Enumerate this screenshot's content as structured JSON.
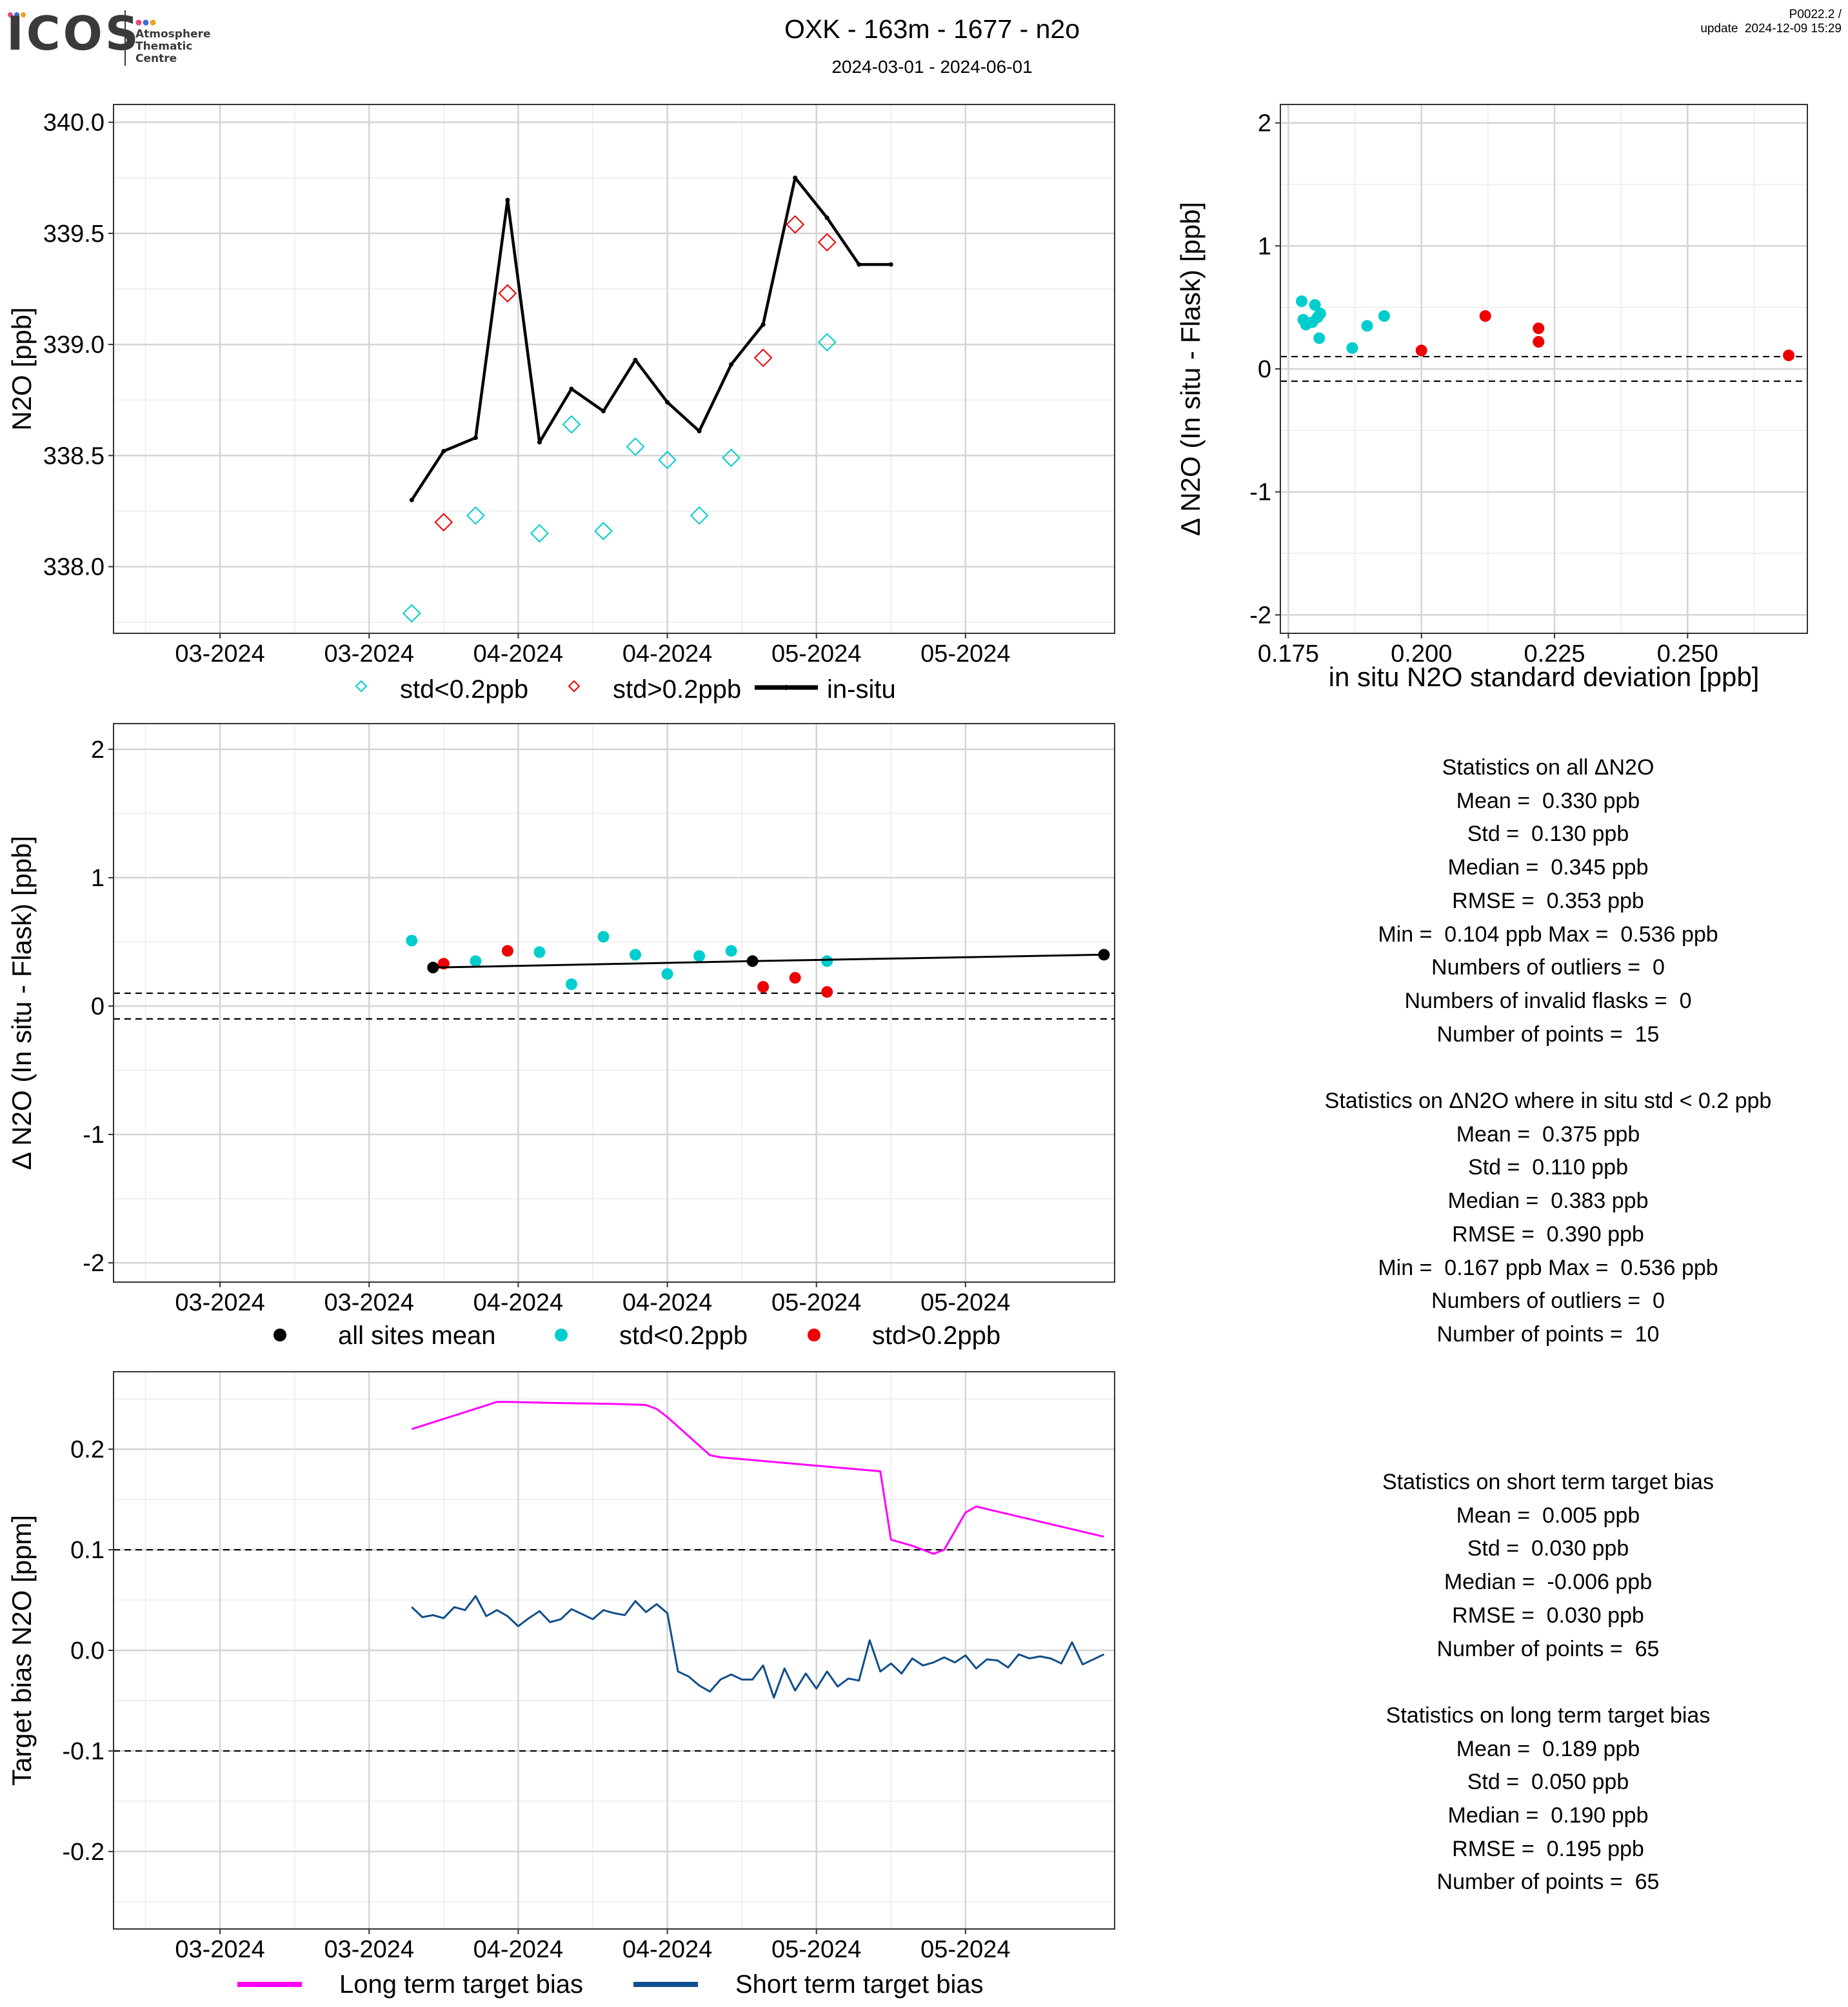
{
  "header": {
    "logo_text": "ICOS",
    "logo_sub": [
      "Atmosphere",
      "Thematic",
      "Centre"
    ],
    "title": "OXK - 163m - 1677 - n2o",
    "subtitle": "2024-03-01 - 2024-06-01",
    "version": "P0022.2 /",
    "update": "update  2024-12-09 15:29",
    "dot_colors": [
      "#e8487a",
      "#3a6fd8",
      "#f0a020"
    ]
  },
  "colors": {
    "cyan": "#00CDCD",
    "red": "#EE0000",
    "black": "#000000",
    "magenta": "#FF00FF",
    "navy": "#104E8B",
    "grid_major": "#d4d4d4",
    "grid_minor": "#ececec"
  },
  "chart_data": [
    {
      "id": "timeseries",
      "type": "line",
      "title": "",
      "xlabel": "",
      "ylabel": "N2O [ppb]",
      "x_tick_labels": [
        "03-2024",
        "03-2024",
        "04-2024",
        "04-2024",
        "05-2024",
        "05-2024"
      ],
      "x_tick_dates": [
        "2024-02-26",
        "2024-03-11",
        "2024-03-25",
        "2024-04-08",
        "2024-04-22",
        "2024-05-06"
      ],
      "x_range": [
        "2024-02-16",
        "2024-05-20"
      ],
      "ylim": [
        337.7,
        340.08
      ],
      "yticks": [
        338.0,
        338.5,
        339.0,
        339.5,
        340.0
      ],
      "ytick_labels": [
        "338.0",
        "338.5",
        "339.0",
        "339.5",
        "340.0"
      ],
      "legend": {
        "position": "bottom",
        "entries": [
          "std<0.2ppb",
          "std>0.2ppb",
          "in-situ"
        ]
      },
      "series": [
        {
          "name": "in-situ",
          "style": "line",
          "color": "black",
          "x": [
            "2024-03-15",
            "2024-03-18",
            "2024-03-21",
            "2024-03-24",
            "2024-03-27",
            "2024-03-30",
            "2024-04-02",
            "2024-04-05",
            "2024-04-08",
            "2024-04-11",
            "2024-04-14",
            "2024-04-17",
            "2024-04-20",
            "2024-04-23",
            "2024-04-26",
            "2024-04-29"
          ],
          "y": [
            338.3,
            338.52,
            338.58,
            339.65,
            338.56,
            338.8,
            338.7,
            338.93,
            338.74,
            338.61,
            338.91,
            339.09,
            339.75,
            339.57,
            339.36,
            339.36
          ]
        },
        {
          "name": "std<0.2ppb",
          "style": "diamond",
          "color": "cyan",
          "x": [
            "2024-03-15",
            "2024-03-21",
            "2024-03-27",
            "2024-03-30",
            "2024-04-02",
            "2024-04-05",
            "2024-04-08",
            "2024-04-11",
            "2024-04-14",
            "2024-04-23"
          ],
          "y": [
            337.79,
            338.23,
            338.15,
            338.64,
            338.16,
            338.54,
            338.48,
            338.23,
            338.49,
            339.01
          ]
        },
        {
          "name": "std>0.2ppb",
          "style": "diamond",
          "color": "red",
          "x": [
            "2024-03-18",
            "2024-03-24",
            "2024-04-17",
            "2024-04-20",
            "2024-04-23"
          ],
          "y": [
            338.2,
            339.23,
            338.94,
            339.54,
            339.46
          ]
        }
      ]
    },
    {
      "id": "scatter-std",
      "type": "scatter",
      "title": "",
      "xlabel": "in situ N2O standard deviation [ppb]",
      "ylabel": "Δ N2O (In situ - Flask) [ppb]",
      "xlim": [
        0.1735,
        0.2725
      ],
      "ylim": [
        -2.15,
        2.15
      ],
      "xticks": [
        0.175,
        0.2,
        0.225,
        0.25
      ],
      "xtick_labels": [
        "0.175",
        "0.200",
        "0.225",
        "0.250"
      ],
      "yticks": [
        -2,
        -1,
        0,
        1,
        2
      ],
      "ytick_labels": [
        "-2",
        "-1",
        "0",
        "1",
        "2"
      ],
      "hlines": [
        0.1,
        -0.1
      ],
      "series": [
        {
          "name": "std<0.2ppb",
          "color": "cyan",
          "x": [
            0.1775,
            0.1778,
            0.1783,
            0.1795,
            0.18,
            0.1805,
            0.181,
            0.1808,
            0.187,
            0.1898,
            0.193
          ],
          "y": [
            0.55,
            0.4,
            0.36,
            0.38,
            0.52,
            0.42,
            0.45,
            0.25,
            0.17,
            0.35,
            0.43
          ]
        },
        {
          "name": "std>0.2ppb",
          "color": "red",
          "x": [
            0.2,
            0.212,
            0.222,
            0.222,
            0.269
          ],
          "y": [
            0.15,
            0.43,
            0.33,
            0.22,
            0.11
          ]
        }
      ]
    },
    {
      "id": "delta-time",
      "type": "scatter",
      "title": "",
      "xlabel": "",
      "ylabel": "Δ N2O (In situ - Flask) [ppb]",
      "x_tick_labels": [
        "03-2024",
        "03-2024",
        "04-2024",
        "04-2024",
        "05-2024",
        "05-2024"
      ],
      "x_tick_dates": [
        "2024-02-26",
        "2024-03-11",
        "2024-03-25",
        "2024-04-08",
        "2024-04-22",
        "2024-05-06"
      ],
      "x_range": [
        "2024-02-16",
        "2024-05-20"
      ],
      "ylim": [
        -2.15,
        2.2
      ],
      "yticks": [
        -2,
        -1,
        0,
        1,
        2
      ],
      "ytick_labels": [
        "-2",
        "-1",
        "0",
        "1",
        "2"
      ],
      "hlines": [
        0.1,
        -0.1
      ],
      "legend": {
        "position": "bottom",
        "entries": [
          "all sites mean",
          "std<0.2ppb",
          "std>0.2ppb"
        ]
      },
      "series": [
        {
          "name": "std<0.2ppb",
          "color": "cyan",
          "x": [
            "2024-03-15",
            "2024-03-21",
            "2024-03-27",
            "2024-03-30",
            "2024-04-02",
            "2024-04-05",
            "2024-04-08",
            "2024-04-11",
            "2024-04-14",
            "2024-04-23"
          ],
          "y": [
            0.51,
            0.35,
            0.42,
            0.17,
            0.54,
            0.4,
            0.25,
            0.39,
            0.43,
            0.35
          ]
        },
        {
          "name": "std>0.2ppb",
          "color": "red",
          "x": [
            "2024-03-18",
            "2024-03-24",
            "2024-04-17",
            "2024-04-20",
            "2024-04-23"
          ],
          "y": [
            0.33,
            0.43,
            0.15,
            0.22,
            0.11
          ]
        },
        {
          "name": "all sites mean",
          "color": "black",
          "style": "line+points",
          "x": [
            "2024-03-17",
            "2024-04-16",
            "2024-05-19"
          ],
          "y": [
            0.3,
            0.35,
            0.4
          ]
        }
      ]
    },
    {
      "id": "target-bias",
      "type": "line",
      "title": "",
      "xlabel": "",
      "ylabel": "Target bias N2O [ppm]",
      "x_tick_labels": [
        "03-2024",
        "03-2024",
        "04-2024",
        "04-2024",
        "05-2024",
        "05-2024"
      ],
      "x_tick_dates": [
        "2024-02-26",
        "2024-03-11",
        "2024-03-25",
        "2024-04-08",
        "2024-04-22",
        "2024-05-06"
      ],
      "x_range": [
        "2024-02-16",
        "2024-05-20"
      ],
      "ylim": [
        -0.277,
        0.277
      ],
      "yticks": [
        -0.2,
        -0.1,
        0.0,
        0.1,
        0.2
      ],
      "ytick_labels": [
        "-0.2",
        "-0.1",
        "0.0",
        "0.1",
        "0.2"
      ],
      "hlines": [
        0.1,
        -0.1
      ],
      "legend": {
        "position": "bottom",
        "entries": [
          "Long term target bias",
          "Short term target bias"
        ]
      },
      "series": [
        {
          "name": "Long term target bias",
          "color": "magenta",
          "x": [
            "2024-03-15",
            "2024-03-23",
            "2024-03-24",
            "2024-03-28",
            "2024-04-03",
            "2024-04-06",
            "2024-04-07",
            "2024-04-08",
            "2024-04-12",
            "2024-04-13",
            "2024-04-28",
            "2024-04-29",
            "2024-05-01",
            "2024-05-03",
            "2024-05-04",
            "2024-05-06",
            "2024-05-07",
            "2024-05-19"
          ],
          "y": [
            0.22,
            0.247,
            0.247,
            0.246,
            0.245,
            0.244,
            0.24,
            0.232,
            0.194,
            0.192,
            0.178,
            0.11,
            0.104,
            0.096,
            0.1,
            0.137,
            0.143,
            0.113
          ]
        },
        {
          "name": "Short term target bias",
          "color": "navy",
          "x": [
            "2024-03-15",
            "2024-03-16",
            "2024-03-17",
            "2024-03-18",
            "2024-03-19",
            "2024-03-20",
            "2024-03-21",
            "2024-03-22",
            "2024-03-23",
            "2024-03-24",
            "2024-03-25",
            "2024-03-26",
            "2024-03-27",
            "2024-03-28",
            "2024-03-29",
            "2024-03-30",
            "2024-03-31",
            "2024-04-01",
            "2024-04-02",
            "2024-04-03",
            "2024-04-04",
            "2024-04-05",
            "2024-04-06",
            "2024-04-07",
            "2024-04-08",
            "2024-04-09",
            "2024-04-10",
            "2024-04-11",
            "2024-04-12",
            "2024-04-13",
            "2024-04-14",
            "2024-04-15",
            "2024-04-16",
            "2024-04-17",
            "2024-04-18",
            "2024-04-19",
            "2024-04-20",
            "2024-04-21",
            "2024-04-22",
            "2024-04-23",
            "2024-04-24",
            "2024-04-25",
            "2024-04-26",
            "2024-04-27",
            "2024-04-28",
            "2024-04-29",
            "2024-04-30",
            "2024-05-01",
            "2024-05-02",
            "2024-05-03",
            "2024-05-04",
            "2024-05-05",
            "2024-05-06",
            "2024-05-07",
            "2024-05-08",
            "2024-05-09",
            "2024-05-10",
            "2024-05-11",
            "2024-05-12",
            "2024-05-13",
            "2024-05-14",
            "2024-05-15",
            "2024-05-16",
            "2024-05-17",
            "2024-05-19"
          ],
          "y": [
            0.043,
            0.033,
            0.035,
            0.032,
            0.043,
            0.04,
            0.054,
            0.034,
            0.04,
            0.034,
            0.024,
            0.032,
            0.039,
            0.028,
            0.031,
            0.041,
            0.036,
            0.031,
            0.04,
            0.037,
            0.035,
            0.049,
            0.038,
            0.046,
            0.037,
            -0.021,
            -0.026,
            -0.035,
            -0.041,
            -0.029,
            -0.024,
            -0.029,
            -0.029,
            -0.015,
            -0.047,
            -0.018,
            -0.04,
            -0.023,
            -0.038,
            -0.021,
            -0.036,
            -0.028,
            -0.03,
            0.01,
            -0.021,
            -0.013,
            -0.023,
            -0.008,
            -0.015,
            -0.012,
            -0.007,
            -0.012,
            -0.005,
            -0.018,
            -0.009,
            -0.01,
            -0.017,
            -0.004,
            -0.008,
            -0.006,
            -0.008,
            -0.013,
            0.008,
            -0.014,
            -0.004
          ]
        }
      ]
    }
  ],
  "stats_all": [
    "Statistics on all ΔN2O",
    "Mean =  0.330 ppb",
    "Std =  0.130 ppb",
    "Median =  0.345 ppb",
    "RMSE =  0.353 ppb",
    "Min =  0.104 ppb Max =  0.536 ppb",
    "Numbers of outliers =  0",
    "Numbers of invalid flasks =  0",
    "Number of points =  15",
    "",
    "Statistics on ΔN2O where in situ std < 0.2 ppb",
    "Mean =  0.375 ppb",
    "Std =  0.110 ppb",
    "Median =  0.383 ppb",
    "RMSE =  0.390 ppb",
    "Min =  0.167 ppb Max =  0.536 ppb",
    "Numbers of outliers =  0",
    "Number of points =  10"
  ],
  "stats_target": [
    "Statistics on short term target bias",
    "Mean =  0.005 ppb",
    "Std =  0.030 ppb",
    "Median =  -0.006 ppb",
    "RMSE =  0.030 ppb",
    "Number of points =  65",
    "",
    "Statistics on long term target bias",
    "Mean =  0.189 ppb",
    "Std =  0.050 ppb",
    "Median =  0.190 ppb",
    "RMSE =  0.195 ppb",
    "Number of points =  65"
  ]
}
